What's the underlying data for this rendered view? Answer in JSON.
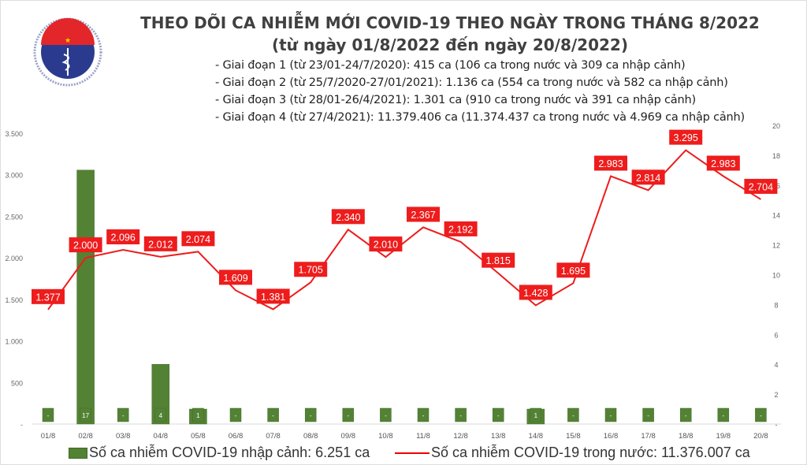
{
  "header": {
    "title": "THEO DÕI CA NHIỄM MỚI COVID-19 THEO NGÀY TRONG THÁNG 8/2022",
    "subtitle": "(từ ngày 01/8/2022 đến ngày 20/8/2022)",
    "notes": [
      "- Giai đoạn 1 (từ 23/01-24/7/2020): 415 ca (106 ca trong nước và 309 ca nhập cảnh)",
      "- Giai đoạn 2 (từ 25/7/2020-27/01/2021): 1.136 ca (554 ca trong nước và 582 ca nhập cảnh)",
      "- Giai đoạn 3 (từ 28/01-26/4/2021): 1.301 ca (910 ca trong nước và 391 ca nhập cảnh)",
      "- Giai đoạn 4 (từ 27/4/2021): 11.379.406 ca (11.374.437 ca trong nước và 4.969 ca nhập cảnh)"
    ],
    "logo_text": "BỘ Y TẾ MINISTRY OF HEALTH"
  },
  "chart_data": {
    "type": "bar+line",
    "categories": [
      "01/8",
      "02/8",
      "03/8",
      "04/8",
      "05/8",
      "06/8",
      "07/8",
      "08/8",
      "09/8",
      "10/8",
      "11/8",
      "12/8",
      "13/8",
      "14/8",
      "15/8",
      "16/8",
      "17/8",
      "18/8",
      "19/8",
      "20/8"
    ],
    "series": [
      {
        "name": "Số ca nhiễm COVID-19 nhập cảnh: 6.251 ca",
        "type": "bar",
        "axis": "right",
        "values": [
          0,
          17,
          0,
          4,
          1,
          0,
          0,
          0,
          0,
          0,
          0,
          0,
          0,
          1,
          0,
          0,
          0,
          0,
          0,
          0
        ],
        "labels": [
          "-",
          "17",
          "-",
          "4",
          "1",
          "-",
          "-",
          "-",
          "-",
          "-",
          "-",
          "-",
          "-",
          "1",
          "-",
          "-",
          "-",
          "-",
          "-",
          "-"
        ],
        "color": "#548235"
      },
      {
        "name": "Số ca nhiễm COVID-19 trong nước: 11.376.007 ca",
        "type": "line",
        "axis": "left",
        "values": [
          1377,
          2000,
          2096,
          2012,
          2074,
          1609,
          1381,
          1705,
          2340,
          2010,
          2367,
          2192,
          1815,
          1428,
          1695,
          2983,
          2814,
          3295,
          2983,
          2704
        ],
        "labels": [
          "1.377",
          "2.000",
          "2.096",
          "2.012",
          "2.074",
          "1.609",
          "1.381",
          "1.705",
          "2.340",
          "2.010",
          "2.367",
          "2.192",
          "1.815",
          "1.428",
          "1.695",
          "2.983",
          "2.814",
          "3.295",
          "2.983",
          "2.704"
        ],
        "color": "#ee1c1c"
      }
    ],
    "left_axis": {
      "range": [
        0,
        3500
      ],
      "ticks": [
        "-",
        "500",
        "1.000",
        "1.500",
        "2.000",
        "2.500",
        "3.000",
        "3.500"
      ]
    },
    "right_axis": {
      "range": [
        0,
        20
      ],
      "ticks": [
        "-",
        "2",
        "4",
        "6",
        "8",
        "10",
        "12",
        "14",
        "16",
        "18",
        "20"
      ]
    },
    "grid": false,
    "legend_position": "bottom"
  }
}
